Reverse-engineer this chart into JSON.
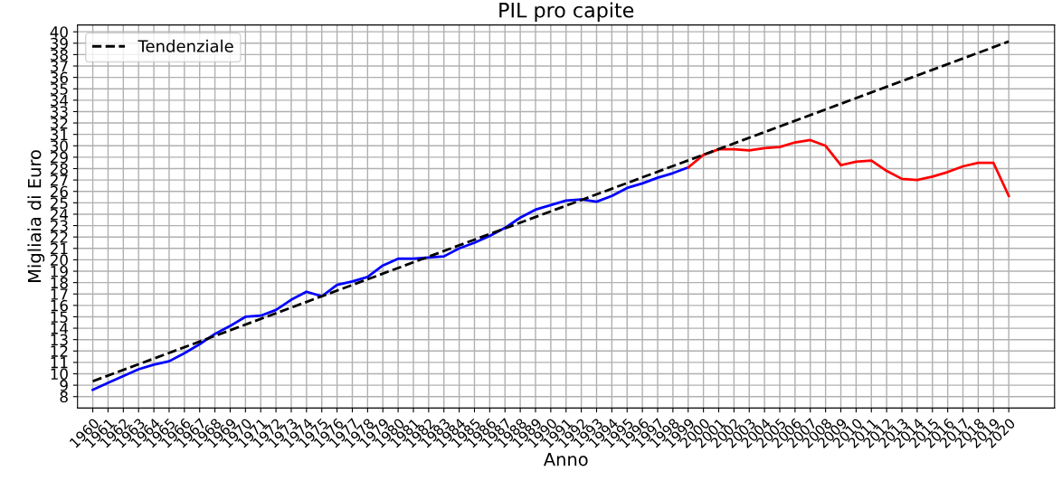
{
  "chart_data": {
    "type": "line",
    "title": "PIL pro capite",
    "xlabel": "Anno",
    "ylabel": "Migliaia di Euro",
    "xlim": [
      1959,
      2023
    ],
    "ylim": [
      7,
      40.6
    ],
    "xticks": [
      1960,
      1961,
      1962,
      1963,
      1964,
      1965,
      1966,
      1967,
      1968,
      1969,
      1970,
      1971,
      1972,
      1973,
      1974,
      1975,
      1976,
      1977,
      1978,
      1979,
      1980,
      1981,
      1982,
      1983,
      1984,
      1985,
      1986,
      1987,
      1988,
      1989,
      1990,
      1991,
      1992,
      1993,
      1994,
      1995,
      1996,
      1997,
      1998,
      1999,
      2000,
      2001,
      2002,
      2003,
      2004,
      2005,
      2006,
      2007,
      2008,
      2009,
      2010,
      2011,
      2012,
      2013,
      2014,
      2015,
      2016,
      2017,
      2018,
      2019,
      2020
    ],
    "yticks": [
      8,
      9,
      10,
      11,
      12,
      13,
      14,
      15,
      16,
      17,
      18,
      19,
      20,
      21,
      22,
      23,
      24,
      25,
      26,
      27,
      28,
      29,
      30,
      31,
      32,
      33,
      34,
      35,
      36,
      37,
      38,
      39,
      40
    ],
    "grid": true,
    "legend": "top left",
    "marker": "none",
    "series": [
      {
        "color": "#0000ff",
        "line_style": "solid",
        "x": [
          1960,
          1961,
          1962,
          1963,
          1964,
          1965,
          1966,
          1967,
          1968,
          1969,
          1970,
          1971,
          1972,
          1973,
          1974,
          1975,
          1976,
          1977,
          1978,
          1979,
          1980,
          1981,
          1982,
          1983,
          1984,
          1985,
          1986,
          1987,
          1988,
          1989,
          1990,
          1991,
          1992,
          1993,
          1994,
          1995,
          1996,
          1997,
          1998,
          1999
        ],
        "values": [
          8.6,
          9.2,
          9.8,
          10.4,
          10.8,
          11.1,
          11.8,
          12.6,
          13.5,
          14.2,
          15.0,
          15.1,
          15.6,
          16.5,
          17.2,
          16.8,
          17.8,
          18.1,
          18.5,
          19.5,
          20.1,
          20.1,
          20.2,
          20.3,
          21.0,
          21.5,
          22.1,
          22.8,
          23.7,
          24.4,
          24.8,
          25.2,
          25.3,
          25.1,
          25.6,
          26.3,
          26.7,
          27.2,
          27.6,
          28.1
        ]
      },
      {
        "color": "#ff0000",
        "line_style": "solid",
        "x": [
          1999,
          2000,
          2001,
          2002,
          2003,
          2004,
          2005,
          2006,
          2007,
          2008,
          2009,
          2010,
          2011,
          2012,
          2013,
          2014,
          2015,
          2016,
          2017,
          2018,
          2019,
          2020
        ],
        "values": [
          28.1,
          29.2,
          29.7,
          29.7,
          29.6,
          29.8,
          29.9,
          30.3,
          30.5,
          30.0,
          28.3,
          28.6,
          28.7,
          27.8,
          27.1,
          27.0,
          27.3,
          27.7,
          28.2,
          28.5,
          28.5,
          25.6
        ]
      },
      {
        "name": "Tendenziale",
        "color": "#000000",
        "line_style": "dashed",
        "x": [
          1960,
          2020
        ],
        "values": [
          9.35,
          39.15
        ]
      }
    ]
  }
}
